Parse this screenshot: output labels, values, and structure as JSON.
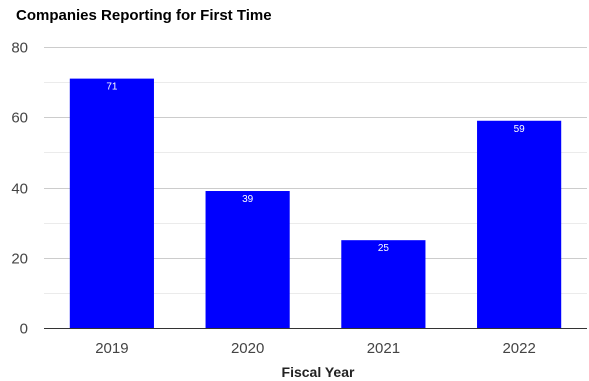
{
  "chart_data": {
    "type": "bar",
    "title": "Companies Reporting for First Time",
    "xlabel": "Fiscal Year",
    "ylabel": "",
    "categories": [
      "2019",
      "2020",
      "2021",
      "2022"
    ],
    "values": [
      71,
      39,
      25,
      59
    ],
    "data_labels": [
      "71",
      "39",
      "25",
      "59"
    ],
    "ylim": [
      0,
      80
    ],
    "yticks": [
      0,
      20,
      40,
      60,
      80
    ],
    "ytick_labels": [
      "0",
      "20",
      "40",
      "60",
      "80"
    ],
    "grid": true,
    "legend": "none",
    "colors": {
      "bar": "#0000ff",
      "major_grid": "#cccccc",
      "minor_grid": "#ebebeb",
      "baseline": "#333333"
    }
  }
}
